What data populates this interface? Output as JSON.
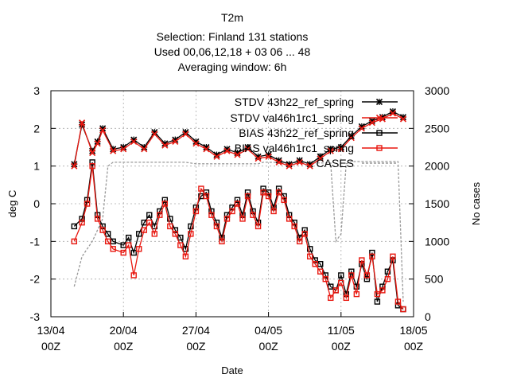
{
  "title_lines": [
    "T2m",
    "Selection: Finland     131 stations",
    "Used  00,06,12,18  + 03 06 ... 48",
    "Averaging window:  6h"
  ],
  "chart_data": {
    "type": "line",
    "xlabel": "Date",
    "ylabel": "deg C",
    "y2label": "No cases",
    "xlim": [
      "13/04 00Z",
      "18/05 00Z"
    ],
    "ylim": [
      -3,
      3
    ],
    "y2lim": [
      0,
      3000
    ],
    "x_ticks": [
      {
        "day": 0,
        "label1": "13/04",
        "label2": "00Z"
      },
      {
        "day": 7,
        "label1": "20/04",
        "label2": "00Z"
      },
      {
        "day": 14,
        "label1": "27/04",
        "label2": "00Z"
      },
      {
        "day": 21,
        "label1": "04/05",
        "label2": "00Z"
      },
      {
        "day": 28,
        "label1": "11/05",
        "label2": "00Z"
      },
      {
        "day": 35,
        "label1": "18/05",
        "label2": "00Z"
      }
    ],
    "y_ticks": [
      -3,
      -2,
      -1,
      0,
      1,
      2,
      3
    ],
    "y2_ticks": [
      0,
      500,
      1000,
      1500,
      2000,
      2500,
      3000
    ],
    "grid": true,
    "legend_position": "top-right",
    "series": [
      {
        "name": "STDV 43h22_ref_spring",
        "axis": "y1",
        "color": "#000000",
        "marker": "star",
        "x": [
          2.25,
          3,
          4,
          4.5,
          5,
          6,
          7,
          8,
          9,
          10,
          11,
          12,
          13,
          14,
          15,
          16,
          17,
          18,
          19,
          20,
          21,
          22,
          23,
          24,
          25,
          26,
          27,
          28,
          29,
          30,
          31,
          32,
          33,
          34
        ],
        "y": [
          1.05,
          2.1,
          1.4,
          1.65,
          2.0,
          1.45,
          1.5,
          1.7,
          1.5,
          1.9,
          1.6,
          1.7,
          1.9,
          1.65,
          1.5,
          1.3,
          1.45,
          1.35,
          1.5,
          1.25,
          1.3,
          1.15,
          1.05,
          1.15,
          1.05,
          1.25,
          1.45,
          1.5,
          1.8,
          2.05,
          2.2,
          2.3,
          2.45,
          2.3
        ]
      },
      {
        "name": "STDV val46h1rc1_spring",
        "axis": "y1",
        "color": "#e8170f",
        "marker": "x",
        "x": [
          2.25,
          3,
          4,
          4.5,
          5,
          6,
          7,
          8,
          9,
          10,
          11,
          12,
          13,
          14,
          15,
          16,
          17,
          18,
          19,
          20,
          21,
          22,
          23,
          24,
          25,
          26,
          27,
          28,
          29,
          30,
          31,
          32,
          33,
          34
        ],
        "y": [
          1.0,
          2.15,
          1.35,
          1.6,
          1.95,
          1.4,
          1.45,
          1.65,
          1.45,
          1.85,
          1.55,
          1.65,
          1.85,
          1.6,
          1.45,
          1.25,
          1.4,
          1.3,
          1.45,
          1.2,
          1.25,
          1.1,
          1.0,
          1.1,
          1.0,
          1.2,
          1.4,
          1.45,
          1.75,
          2.0,
          2.15,
          2.25,
          2.4,
          2.25
        ]
      },
      {
        "name": "BIAS 43h22_ref_spring",
        "axis": "y1",
        "color": "#000000",
        "marker": "square",
        "x": [
          2.25,
          3,
          3.5,
          4,
          4.5,
          5,
          5.5,
          6,
          7,
          7.5,
          8,
          8.5,
          9,
          9.5,
          10,
          10.5,
          11,
          11.5,
          12,
          12.5,
          13,
          13.5,
          14,
          14.5,
          15,
          15.5,
          16,
          16.5,
          17,
          17.5,
          18,
          18.5,
          19,
          19.5,
          20,
          20.5,
          21,
          21.5,
          22,
          22.5,
          23,
          23.5,
          24,
          24.5,
          25,
          25.5,
          26,
          26.5,
          27,
          27.5,
          28,
          28.5,
          29,
          29.5,
          30,
          30.5,
          31,
          31.5,
          32,
          32.5,
          33,
          33.5,
          34
        ],
        "y": [
          -0.6,
          -0.4,
          0.1,
          1.1,
          -0.3,
          -0.6,
          -0.8,
          -1.0,
          -1.1,
          -0.9,
          -1.3,
          -0.8,
          -0.5,
          -0.3,
          -0.6,
          -0.2,
          0.1,
          -0.4,
          -0.7,
          -0.9,
          -1.2,
          -0.6,
          -0.1,
          0.2,
          0.3,
          -0.2,
          -0.5,
          -0.9,
          -0.3,
          -0.1,
          0.1,
          -0.3,
          0.3,
          -0.2,
          -0.5,
          0.4,
          0.3,
          -0.1,
          0.4,
          0.2,
          -0.3,
          -0.5,
          -0.9,
          -0.7,
          -1.2,
          -1.5,
          -1.6,
          -1.9,
          -2.2,
          -2.3,
          -1.9,
          -2.4,
          -1.8,
          -2.2,
          -1.6,
          -2.0,
          -1.3,
          -2.6,
          -2.2,
          -1.8,
          -1.5,
          -2.7,
          -2.8
        ]
      },
      {
        "name": "BIAS val46h1rc1_spring",
        "axis": "y1",
        "color": "#e8170f",
        "marker": "square",
        "x": [
          2.25,
          3,
          3.5,
          4,
          4.5,
          5,
          5.5,
          6,
          7,
          7.5,
          8,
          8.5,
          9,
          9.5,
          10,
          10.5,
          11,
          11.5,
          12,
          12.5,
          13,
          13.5,
          14,
          14.5,
          15,
          15.5,
          16,
          16.5,
          17,
          17.5,
          18,
          18.5,
          19,
          19.5,
          20,
          20.5,
          21,
          21.5,
          22,
          22.5,
          23,
          23.5,
          24,
          24.5,
          25,
          25.5,
          26,
          26.5,
          27,
          27.5,
          28,
          28.5,
          29,
          29.5,
          30,
          30.5,
          31,
          31.5,
          32,
          32.5,
          33,
          33.5,
          34
        ],
        "y": [
          -1.0,
          -0.5,
          0.0,
          1.0,
          -0.4,
          -0.7,
          -1.0,
          -1.2,
          -1.3,
          -1.1,
          -1.9,
          -1.2,
          -0.7,
          -0.5,
          -0.8,
          -0.3,
          0.0,
          -0.6,
          -0.8,
          -1.1,
          -1.4,
          -0.8,
          -0.2,
          0.4,
          0.2,
          -0.3,
          -0.6,
          -1.0,
          -0.4,
          -0.2,
          0.0,
          -0.4,
          0.2,
          -0.3,
          -0.6,
          0.3,
          0.2,
          -0.2,
          0.3,
          0.1,
          -0.4,
          -0.6,
          -1.0,
          -0.8,
          -1.4,
          -1.6,
          -1.8,
          -2.0,
          -2.5,
          -2.3,
          -2.1,
          -2.5,
          -1.9,
          -2.4,
          -1.5,
          -1.9,
          -1.4,
          -2.4,
          -2.3,
          -2.0,
          -1.4,
          -2.6,
          -2.8
        ]
      },
      {
        "name": "CASES",
        "axis": "y2",
        "color": "#999999",
        "marker": "none",
        "x": [
          2.25,
          3,
          4,
          5,
          5.5,
          6,
          13,
          13.5,
          14,
          20,
          20.5,
          21,
          27,
          27.5,
          28,
          28.5,
          29,
          33,
          33.5,
          34
        ],
        "y": [
          400,
          800,
          1000,
          1300,
          2000,
          2050,
          2050,
          2040,
          2030,
          2030,
          2050,
          2050,
          2040,
          1000,
          1100,
          2030,
          2060,
          2060,
          2060,
          200
        ]
      }
    ]
  }
}
